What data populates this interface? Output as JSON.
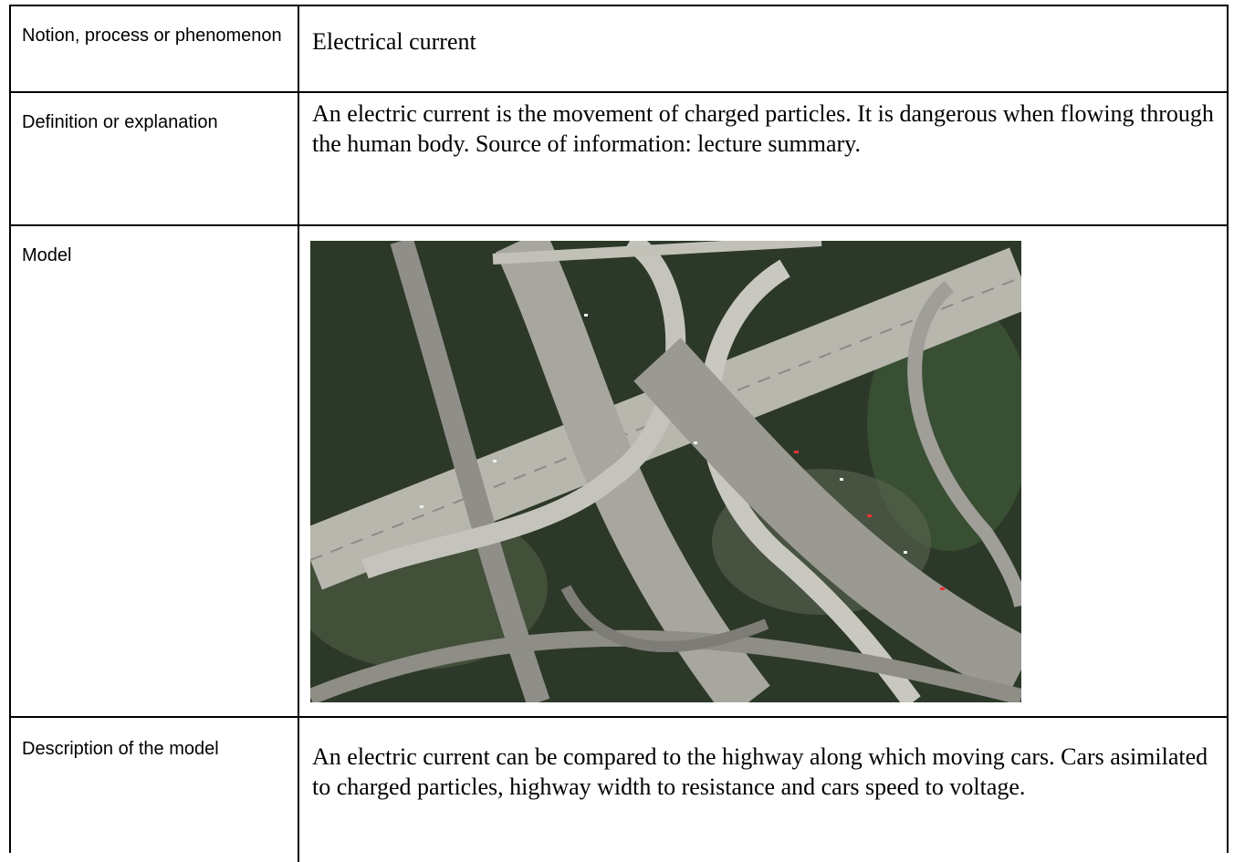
{
  "table": {
    "rows": [
      {
        "label": "Notion, process or phenomenon",
        "content": "Electrical current"
      },
      {
        "label": "Definition or explanation",
        "content": "An electric current is the movement of charged particles. It is dangerous when flowing through the human body. Source of information: lecture summary."
      },
      {
        "label": "Model"
      },
      {
        "label": "Description of the model",
        "content": "An electric current can be compared to the highway along which moving cars. Cars asimilated to charged particles, highway width to resistance and cars speed to voltage."
      }
    ]
  }
}
